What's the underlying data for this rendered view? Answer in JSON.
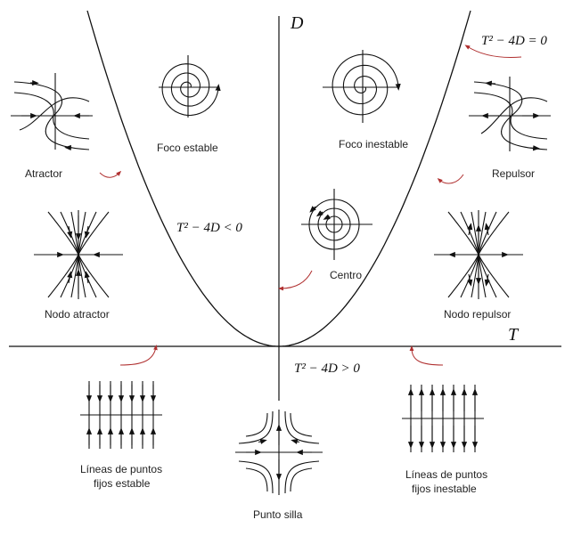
{
  "axes": {
    "x_label": "T",
    "y_label": "D"
  },
  "formulas": {
    "boundary": "T² − 4D = 0",
    "inside": "T² − 4D < 0",
    "below": "T² − 4D > 0"
  },
  "portraits": {
    "stable_focus": "Foco estable",
    "unstable_focus": "Foco inestable",
    "attractor": "Atractor",
    "repeller": "Repulsor",
    "center": "Centro",
    "stable_node": "Nodo atractor",
    "unstable_node": "Nodo repulsor",
    "stable_lines_1": "Líneas de puntos",
    "stable_lines_2": "fijos estable",
    "unstable_lines_1": "Líneas de puntos",
    "unstable_lines_2": "fijos inestable",
    "saddle": "Punto silla"
  },
  "colors": {
    "ink": "#111111",
    "pointer": "#b03030"
  }
}
